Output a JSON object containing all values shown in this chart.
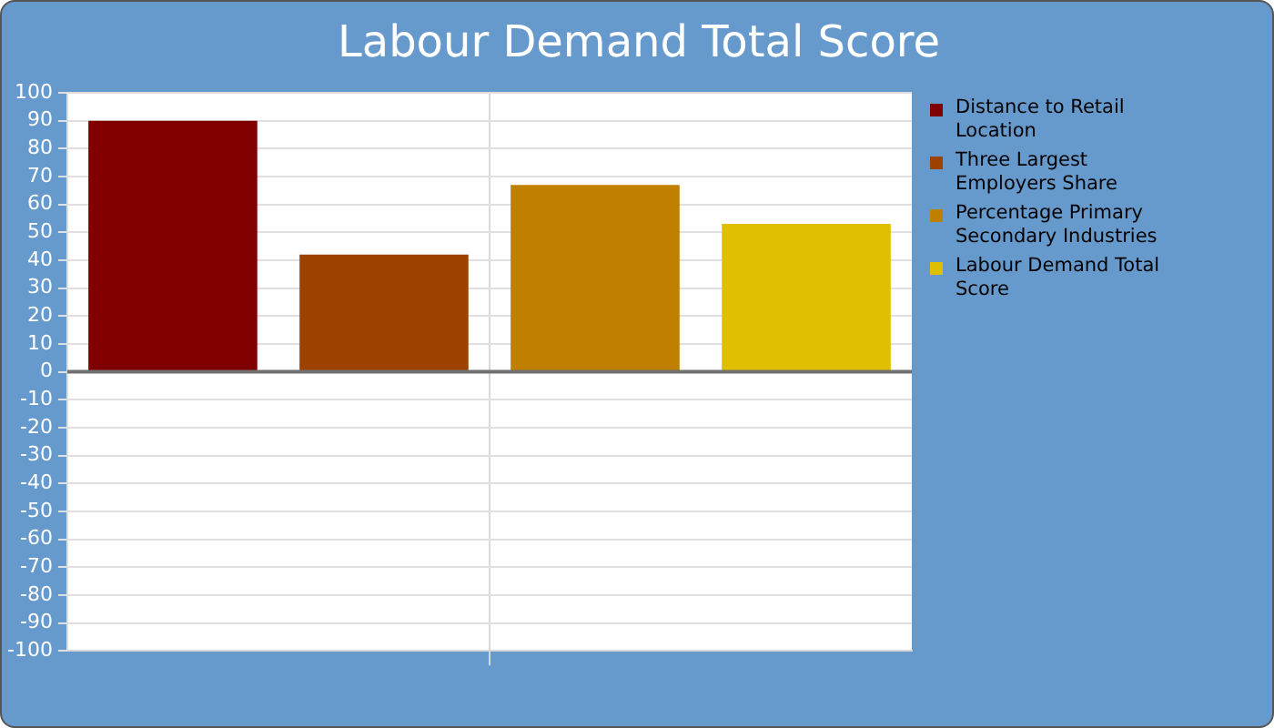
{
  "chart_data": {
    "type": "bar",
    "title": "Labour Demand Total Score",
    "categories": [
      null
    ],
    "series": [
      {
        "name": "Distance to Retail Location",
        "color": "#800000",
        "values": [
          90
        ]
      },
      {
        "name": "Three Largest Employers Share",
        "color": "#9e4200",
        "values": [
          42
        ]
      },
      {
        "name": "Percentage Primary Secondary Industries",
        "color": "#bf7f00",
        "values": [
          67
        ]
      },
      {
        "name": "Labour Demand Total Score",
        "color": "#dfbf00",
        "values": [
          53
        ]
      }
    ],
    "ylim": [
      -100,
      100
    ],
    "yticks": [
      -100,
      -90,
      -80,
      -70,
      -60,
      -50,
      -40,
      -30,
      -20,
      -10,
      0,
      10,
      20,
      30,
      40,
      50,
      60,
      70,
      80,
      90,
      100
    ],
    "grid": true,
    "legend": "right"
  }
}
